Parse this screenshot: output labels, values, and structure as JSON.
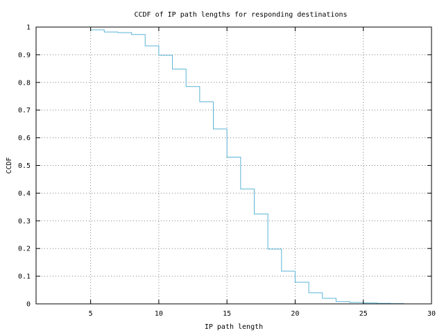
{
  "chart_data": {
    "type": "line",
    "step": true,
    "title": "CCDF of IP path lengths for responding destinations",
    "xlabel": "IP path length",
    "ylabel": "CCDF",
    "xlim": [
      1,
      30
    ],
    "ylim": [
      0,
      1
    ],
    "x_ticks": [
      5,
      10,
      15,
      20,
      25,
      30
    ],
    "y_ticks": [
      0,
      0.1,
      0.2,
      0.3,
      0.4,
      0.5,
      0.6,
      0.7,
      0.8,
      0.9,
      1
    ],
    "x_tick_labels": [
      "5",
      "10",
      "15",
      "20",
      "25",
      "30"
    ],
    "y_tick_labels": [
      "0",
      "0.1",
      "0.2",
      "0.3",
      "0.4",
      "0.5",
      "0.6",
      "0.7",
      "0.8",
      "0.9",
      "1"
    ],
    "grid": true,
    "colors": {
      "series": "#5ab4d6",
      "grid": "#7f7f7f",
      "axis": "#000000"
    },
    "series": [
      {
        "x": [
          5,
          6,
          7,
          8,
          9,
          10,
          11,
          12,
          13,
          14,
          15,
          16,
          17,
          18,
          19,
          20,
          21,
          22,
          23,
          24,
          25,
          26,
          27,
          28
        ],
        "values": [
          0.99,
          0.982,
          0.98,
          0.973,
          0.932,
          0.898,
          0.848,
          0.785,
          0.73,
          0.632,
          0.53,
          0.415,
          0.325,
          0.198,
          0.118,
          0.078,
          0.04,
          0.02,
          0.008,
          0.005,
          0.003,
          0.002,
          0.001,
          0.001
        ]
      }
    ]
  }
}
